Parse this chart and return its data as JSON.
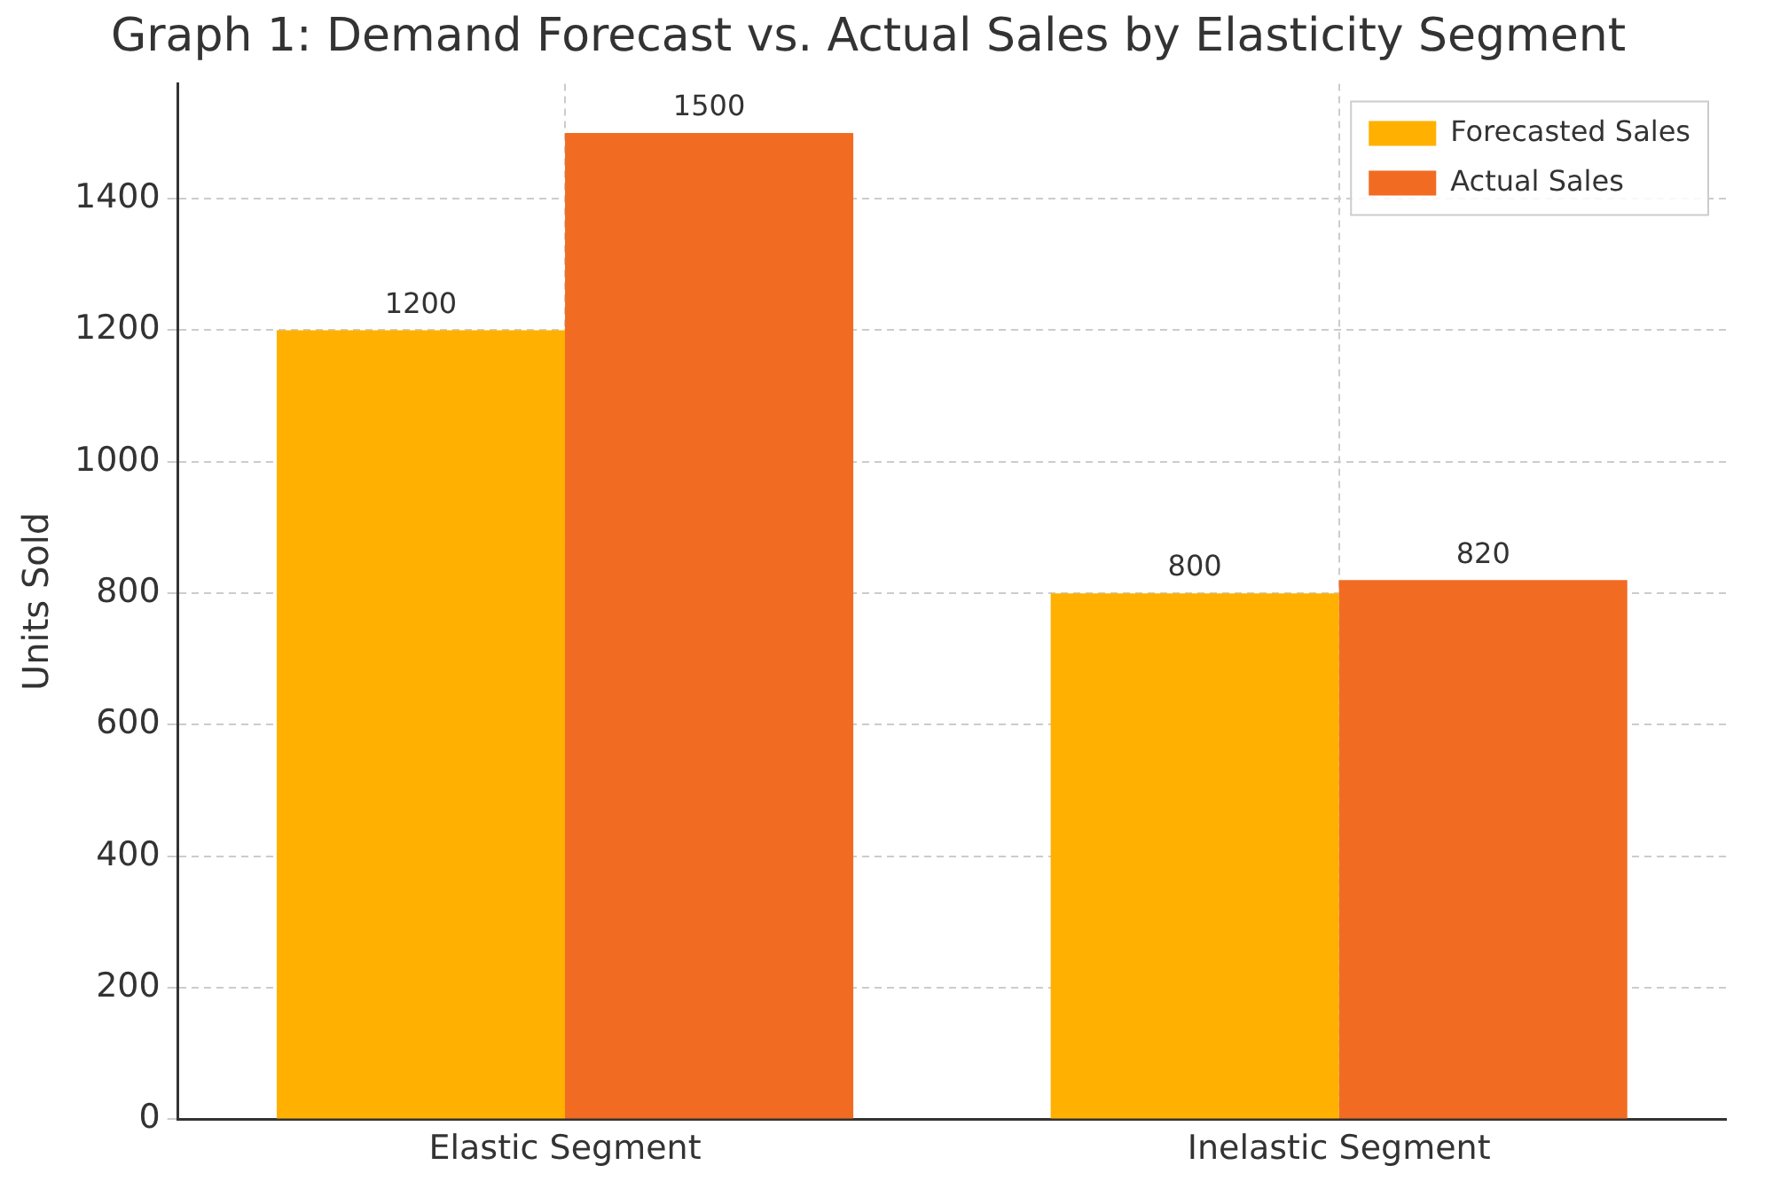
{
  "chart_data": {
    "type": "bar",
    "title": "Graph 1: Demand Forecast vs. Actual Sales by Elasticity Segment",
    "ylabel": "Units Sold",
    "categories": [
      "Elastic Segment",
      "Inelastic Segment"
    ],
    "series": [
      {
        "name": "Forecasted Sales",
        "color": "#ffb000",
        "values": [
          1200,
          800
        ]
      },
      {
        "name": "Actual Sales",
        "color": "#f26b22",
        "values": [
          1500,
          820
        ]
      }
    ],
    "ylim": [
      0,
      1575
    ],
    "yticks": [
      0,
      200,
      400,
      600,
      800,
      1000,
      1200,
      1400
    ],
    "grid": true,
    "legend": "top right",
    "data_labels": true
  }
}
